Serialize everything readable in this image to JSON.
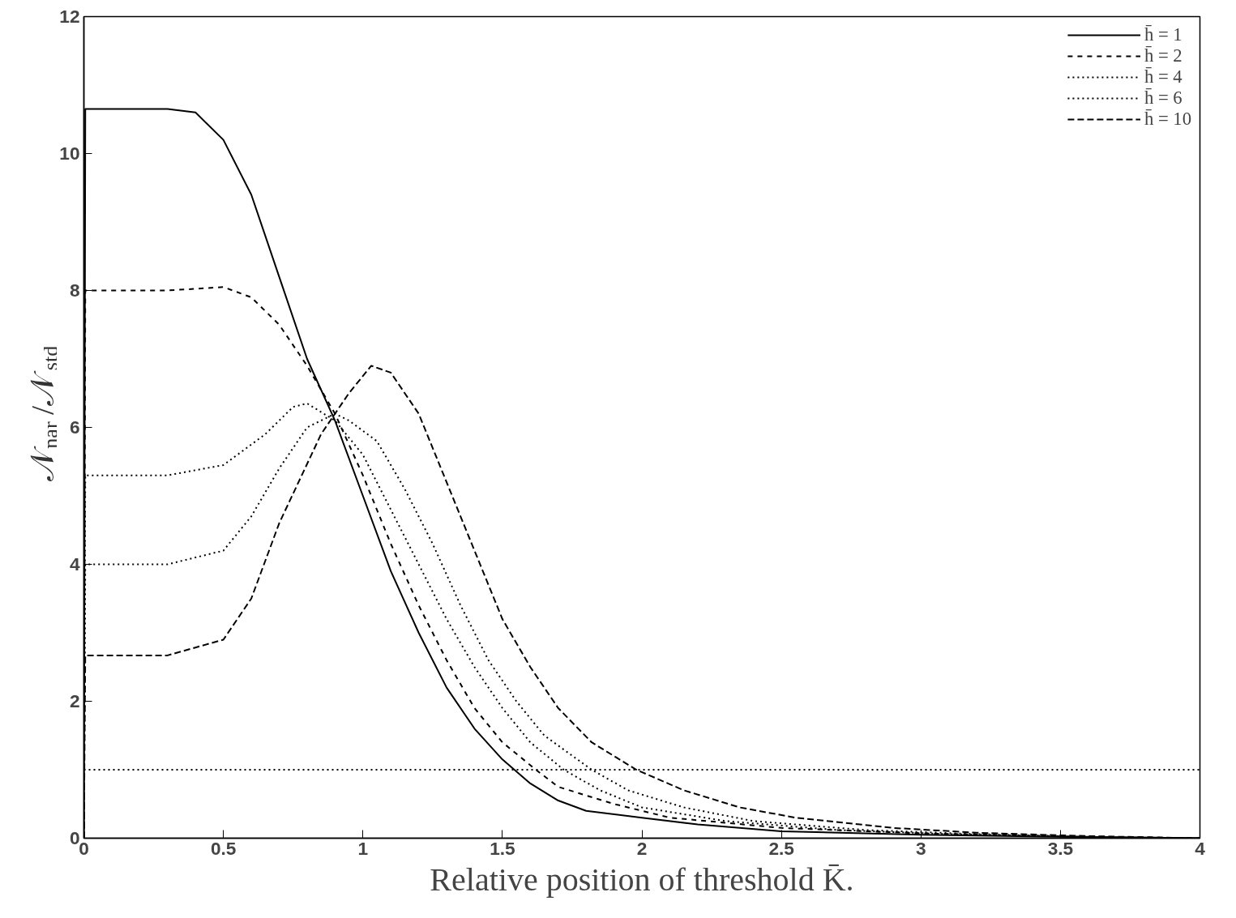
{
  "chart_data": {
    "type": "line",
    "xlabel": "Relative position of threshold K̄.",
    "ylabel": "𝒩$_{nar}$/𝒩$_{std}$",
    "xlim": [
      0,
      4
    ],
    "ylim": [
      0,
      12
    ],
    "xticks": [
      0,
      0.5,
      1,
      1.5,
      2,
      2.5,
      3,
      3.5,
      4
    ],
    "yticks": [
      0,
      2,
      4,
      6,
      8,
      10,
      12
    ],
    "grid": false,
    "legend": "top right",
    "marker": "none",
    "series": [
      {
        "name": "h̄ = 1",
        "color": "#000000",
        "line_style": "solid",
        "x": [
          0,
          0.005,
          0.3,
          0.4,
          0.5,
          0.6,
          0.7,
          0.8,
          0.9,
          1.0,
          1.1,
          1.2,
          1.3,
          1.4,
          1.5,
          1.6,
          1.7,
          1.8,
          2.0,
          2.2,
          2.5,
          3.0,
          3.5,
          4.0
        ],
        "values": [
          0,
          10.65,
          10.65,
          10.6,
          10.2,
          9.4,
          8.2,
          7.0,
          6.1,
          5.0,
          3.9,
          3.0,
          2.2,
          1.6,
          1.15,
          0.8,
          0.55,
          0.4,
          0.3,
          0.2,
          0.1,
          0.05,
          0.02,
          0
        ]
      },
      {
        "name": "h̄ = 2",
        "color": "#000000",
        "line_style": "dashed",
        "x": [
          0,
          0.005,
          0.3,
          0.5,
          0.6,
          0.7,
          0.8,
          0.9,
          1.0,
          1.1,
          1.2,
          1.3,
          1.4,
          1.5,
          1.62,
          1.7,
          1.9,
          2.1,
          2.5,
          3.0,
          3.5,
          4.0
        ],
        "values": [
          0,
          8.0,
          8.0,
          8.05,
          7.9,
          7.5,
          6.9,
          6.2,
          5.3,
          4.3,
          3.4,
          2.6,
          1.9,
          1.4,
          1.0,
          0.75,
          0.5,
          0.3,
          0.15,
          0.07,
          0.03,
          0
        ]
      },
      {
        "name": "h̄ = 4",
        "color": "#000000",
        "line_style": "dotted",
        "x": [
          0,
          0.005,
          0.3,
          0.5,
          0.65,
          0.75,
          0.8,
          0.9,
          1.0,
          1.1,
          1.2,
          1.3,
          1.4,
          1.5,
          1.6,
          1.72,
          1.85,
          2.0,
          2.3,
          2.7,
          3.1,
          3.6,
          4.0
        ],
        "values": [
          0,
          5.3,
          5.3,
          5.45,
          5.9,
          6.3,
          6.35,
          6.1,
          5.6,
          4.8,
          4.0,
          3.2,
          2.5,
          1.9,
          1.4,
          1.0,
          0.7,
          0.45,
          0.25,
          0.12,
          0.06,
          0.02,
          0
        ]
      },
      {
        "name": "h̄ = 6",
        "color": "#000000",
        "line_style": "dotted",
        "x": [
          0,
          0.005,
          0.3,
          0.5,
          0.6,
          0.7,
          0.8,
          0.9,
          0.95,
          1.05,
          1.15,
          1.25,
          1.35,
          1.45,
          1.55,
          1.65,
          1.82,
          1.95,
          2.15,
          2.4,
          2.8,
          3.2,
          3.6,
          4.0
        ],
        "values": [
          0,
          4.0,
          4.0,
          4.2,
          4.7,
          5.4,
          6.0,
          6.2,
          6.1,
          5.8,
          5.1,
          4.3,
          3.4,
          2.6,
          2.0,
          1.5,
          1.0,
          0.7,
          0.45,
          0.25,
          0.12,
          0.06,
          0.02,
          0
        ]
      },
      {
        "name": "h̄ = 10",
        "color": "#000000",
        "line_style": "dashed",
        "x": [
          0,
          0.005,
          0.3,
          0.5,
          0.6,
          0.7,
          0.85,
          0.95,
          1.03,
          1.1,
          1.2,
          1.3,
          1.4,
          1.5,
          1.6,
          1.7,
          1.82,
          1.98,
          2.15,
          2.35,
          2.55,
          2.9,
          3.2,
          3.6,
          4.0
        ],
        "values": [
          0,
          2.67,
          2.67,
          2.9,
          3.5,
          4.6,
          5.9,
          6.5,
          6.9,
          6.8,
          6.2,
          5.2,
          4.2,
          3.2,
          2.5,
          1.9,
          1.4,
          1.0,
          0.7,
          0.45,
          0.3,
          0.15,
          0.08,
          0.03,
          0
        ]
      }
    ],
    "ref_lines": [
      {
        "axis": "y",
        "value": 1,
        "color": "#000000",
        "line_style": "dotted"
      }
    ]
  }
}
